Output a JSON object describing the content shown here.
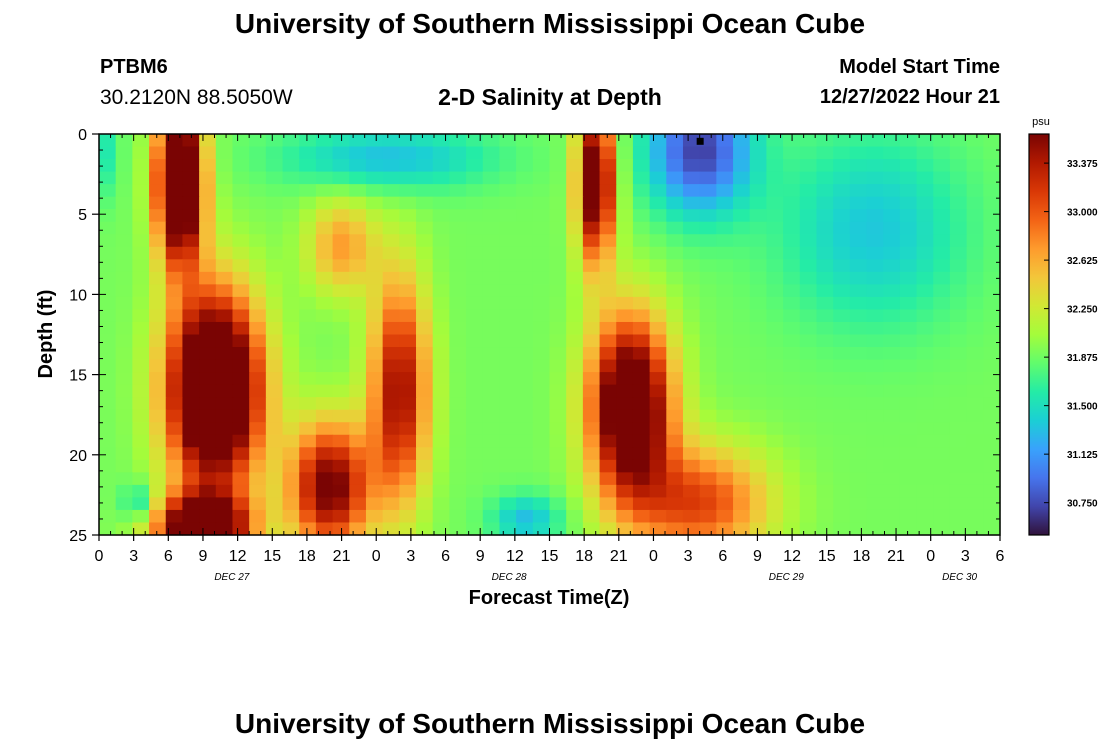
{
  "page": {
    "title": "University of Southern Mississippi Ocean Cube",
    "station_id": "PTBM6",
    "coordinates": "30.2120N  88.5050W",
    "plot_title": "2-D Salinity at Depth",
    "model_start_label": "Model Start Time",
    "model_start_value": "12/27/2022 Hour 21",
    "footer_title": "University of Southern Mississippi Ocean Cube"
  },
  "colors": {
    "colormap": [
      "#30123b",
      "#4145ab",
      "#4675ed",
      "#39a2fc",
      "#1bcfd4",
      "#24eca6",
      "#61fc6c",
      "#a4fc3b",
      "#d1e834",
      "#f3c63a",
      "#fe9b2d",
      "#f36315",
      "#d93806",
      "#b11901",
      "#7a0403"
    ]
  },
  "chart_data": {
    "type": "heatmap",
    "title": "2-D Salinity at Depth",
    "xlabel": "Forecast Time(Z)",
    "ylabel": "Depth (ft)",
    "x_range_hours": [
      0,
      78
    ],
    "y_range_ft": [
      0,
      25
    ],
    "x_ticks": [
      {
        "hour": 0,
        "label": "0"
      },
      {
        "hour": 3,
        "label": "3"
      },
      {
        "hour": 6,
        "label": "6"
      },
      {
        "hour": 9,
        "label": "9"
      },
      {
        "hour": 12,
        "label": "12"
      },
      {
        "hour": 15,
        "label": "15"
      },
      {
        "hour": 18,
        "label": "18"
      },
      {
        "hour": 21,
        "label": "21"
      },
      {
        "hour": 24,
        "label": "0"
      },
      {
        "hour": 27,
        "label": "3"
      },
      {
        "hour": 30,
        "label": "6"
      },
      {
        "hour": 33,
        "label": "9"
      },
      {
        "hour": 36,
        "label": "12"
      },
      {
        "hour": 39,
        "label": "15"
      },
      {
        "hour": 42,
        "label": "18"
      },
      {
        "hour": 45,
        "label": "21"
      },
      {
        "hour": 48,
        "label": "0"
      },
      {
        "hour": 51,
        "label": "3"
      },
      {
        "hour": 54,
        "label": "6"
      },
      {
        "hour": 57,
        "label": "9"
      },
      {
        "hour": 60,
        "label": "12"
      },
      {
        "hour": 63,
        "label": "15"
      },
      {
        "hour": 66,
        "label": "18"
      },
      {
        "hour": 69,
        "label": "21"
      },
      {
        "hour": 72,
        "label": "0"
      },
      {
        "hour": 75,
        "label": "3"
      },
      {
        "hour": 78,
        "label": "6"
      }
    ],
    "date_labels": [
      {
        "hour": 11.5,
        "label": "DEC 27"
      },
      {
        "hour": 35.5,
        "label": "DEC 28"
      },
      {
        "hour": 59.5,
        "label": "DEC 29"
      },
      {
        "hour": 74.5,
        "label": "DEC 30"
      }
    ],
    "y_ticks": [
      0,
      5,
      10,
      15,
      20,
      25
    ],
    "colorbar": {
      "unit": "psu",
      "min": 30.5,
      "max": 33.6,
      "tick_values": [
        30.75,
        31.125,
        31.5,
        31.875,
        32.25,
        32.625,
        33.0,
        33.375
      ],
      "tick_labels": [
        "30.750",
        "31.125",
        "31.500",
        "31.875",
        "32.250",
        "32.625",
        "33.000",
        "33.375"
      ]
    },
    "columns": 54,
    "rows": 32,
    "marker": {
      "hour": 52,
      "depth_ft": 0.3
    },
    "salinity_features": [
      {
        "t": 7.0,
        "d": 3.0,
        "dt": 2.0,
        "dd": 5.0,
        "value": 2.7,
        "note": "surface salty tongue"
      },
      {
        "t": 10.0,
        "d": 16.0,
        "dt": 4.0,
        "dd": 6.0,
        "value": 2.9,
        "note": "deep salty core"
      },
      {
        "t": 9.0,
        "d": 24.5,
        "dt": 4.0,
        "dd": 2.0,
        "value": 2.3
      },
      {
        "t": 20.0,
        "d": 22.0,
        "dt": 3.5,
        "dd": 4.0,
        "value": 1.8
      },
      {
        "t": 26.0,
        "d": 16.0,
        "dt": 2.5,
        "dd": 7.0,
        "value": 1.6
      },
      {
        "t": 21.0,
        "d": 7.0,
        "dt": 3.0,
        "dd": 3.0,
        "value": 0.8
      },
      {
        "t": 43.0,
        "d": 3.0,
        "dt": 1.6,
        "dd": 5.0,
        "value": 2.1
      },
      {
        "t": 46.0,
        "d": 17.0,
        "dt": 3.5,
        "dd": 5.5,
        "value": 2.4
      },
      {
        "t": 52.0,
        "d": 23.0,
        "dt": 6.0,
        "dd": 3.5,
        "value": 1.2
      },
      {
        "t": 52.0,
        "d": 1.0,
        "dt": 4.5,
        "dd": 4.0,
        "value": -1.2,
        "note": "fresh surface patch"
      },
      {
        "t": 67.0,
        "d": 6.0,
        "dt": 8.0,
        "dd": 6.0,
        "value": -0.55
      },
      {
        "t": 25.0,
        "d": 1.5,
        "dt": 9.0,
        "dd": 2.0,
        "value": -0.6
      },
      {
        "t": 37.0,
        "d": 24.0,
        "dt": 3.0,
        "dd": 1.5,
        "value": -0.6
      },
      {
        "t": 3.5,
        "d": 23.0,
        "dt": 1.5,
        "dd": 1.2,
        "value": -0.5
      },
      {
        "t": 0.0,
        "d": 1.0,
        "dt": 1.5,
        "dd": 3.0,
        "value": -0.4
      }
    ]
  }
}
